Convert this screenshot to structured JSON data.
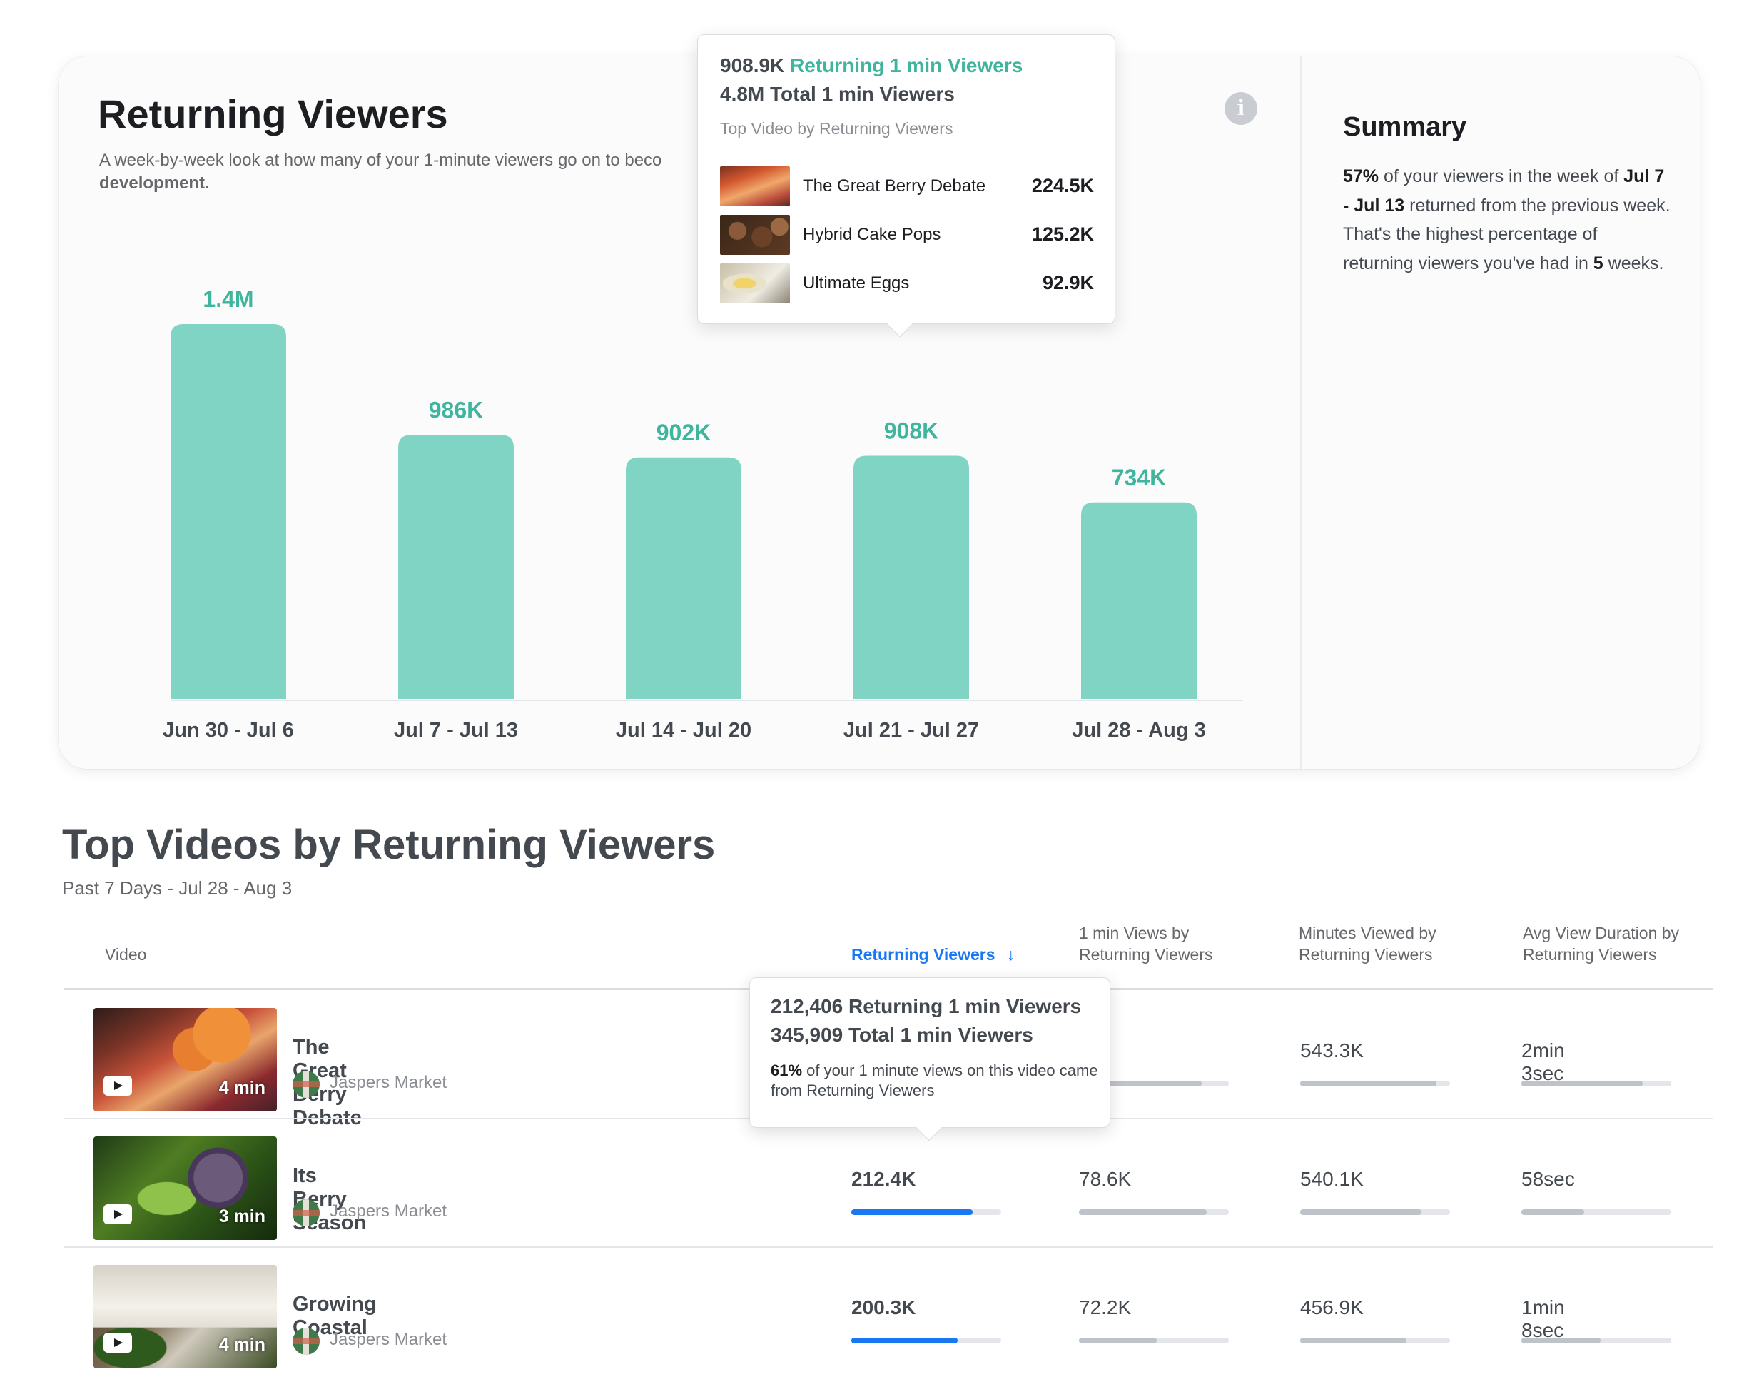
{
  "card": {
    "title": "Returning Viewers",
    "subtitle": "A week-by-week look at how many of your 1-minute viewers go on to beco",
    "subtitle_line2": "development.",
    "info_icon": "info-icon"
  },
  "chart_data": {
    "type": "bar",
    "categories": [
      "Jun 30 - Jul 6",
      "Jul 7 - Jul 13",
      "Jul 14 - Jul 20",
      "Jul 21 - Jul 27",
      "Jul 28 - Aug 3"
    ],
    "values": [
      1400000,
      986000,
      902000,
      908000,
      734000
    ],
    "data_labels": [
      "1.4M",
      "986K",
      "902K",
      "908K",
      "734K"
    ],
    "title": "Returning Viewers",
    "bar_color": "#80d4c3",
    "label_color": "#3fb59d",
    "grid": false
  },
  "chart_tooltip": {
    "returning_value": "908.9K",
    "returning_label": "Returning 1 min Viewers",
    "total_line": "4.8M Total 1 min Viewers",
    "heading": "Top Video by Returning Viewers",
    "videos": [
      {
        "name": "The Great Berry Debate",
        "value": "224.5K"
      },
      {
        "name": "Hybrid Cake Pops",
        "value": "125.2K"
      },
      {
        "name": "Ultimate Eggs",
        "value": "92.9K"
      }
    ]
  },
  "summary": {
    "title": "Summary",
    "pct": "57%",
    "text1": " of your viewers in the week of ",
    "week": "Jul 7 - Jul 13",
    "text2": "  returned from the previous week. That's the highest percentage of returning viewers you've had in ",
    "weeks": "5",
    "text3": " weeks."
  },
  "section": {
    "title": "Top Videos by Returning Viewers",
    "subtitle": "Past 7 Days - Jul 28 - Aug 3"
  },
  "table": {
    "headers": {
      "video": "Video",
      "returning": "Returning Viewers",
      "sort_icon": "arrow-down-icon",
      "one_min_1": "1 min Views by",
      "one_min_2": "Returning Viewers",
      "minutes_1": "Minutes Viewed by",
      "minutes_2": "Returning Viewers",
      "avg_1": "Avg View Duration by",
      "avg_2": "Returning Viewers"
    },
    "rows": [
      {
        "title": "The Great Berry Debate",
        "channel": "Jaspers Market",
        "duration": "4 min",
        "returning": "",
        "returning_pct": 0,
        "one_min": ".2K",
        "one_min_pct": 0.82,
        "minutes": "543.3K",
        "minutes_pct": 0.91,
        "avg": "2min 3sec",
        "avg_pct": 0.81
      },
      {
        "title": "Its Berry Season",
        "channel": "Jaspers Market",
        "duration": "3 min",
        "returning": "212.4K",
        "returning_pct": 0.81,
        "one_min": "78.6K",
        "one_min_pct": 0.85,
        "minutes": "540.1K",
        "minutes_pct": 0.81,
        "avg": "58sec",
        "avg_pct": 0.42
      },
      {
        "title": "Growing Coastal",
        "channel": "Jaspers Market",
        "duration": "4 min",
        "returning": "200.3K",
        "returning_pct": 0.71,
        "one_min": "72.2K",
        "one_min_pct": 0.52,
        "minutes": "456.9K",
        "minutes_pct": 0.71,
        "avg": "1min 8sec",
        "avg_pct": 0.53
      }
    ]
  },
  "table_tooltip": {
    "line1": "212,406 Returning 1 min Viewers",
    "line2": "345,909 Total 1 min Viewers",
    "pct": "61%",
    "text": " of your 1 minute views on this video came from Returning Viewers"
  }
}
